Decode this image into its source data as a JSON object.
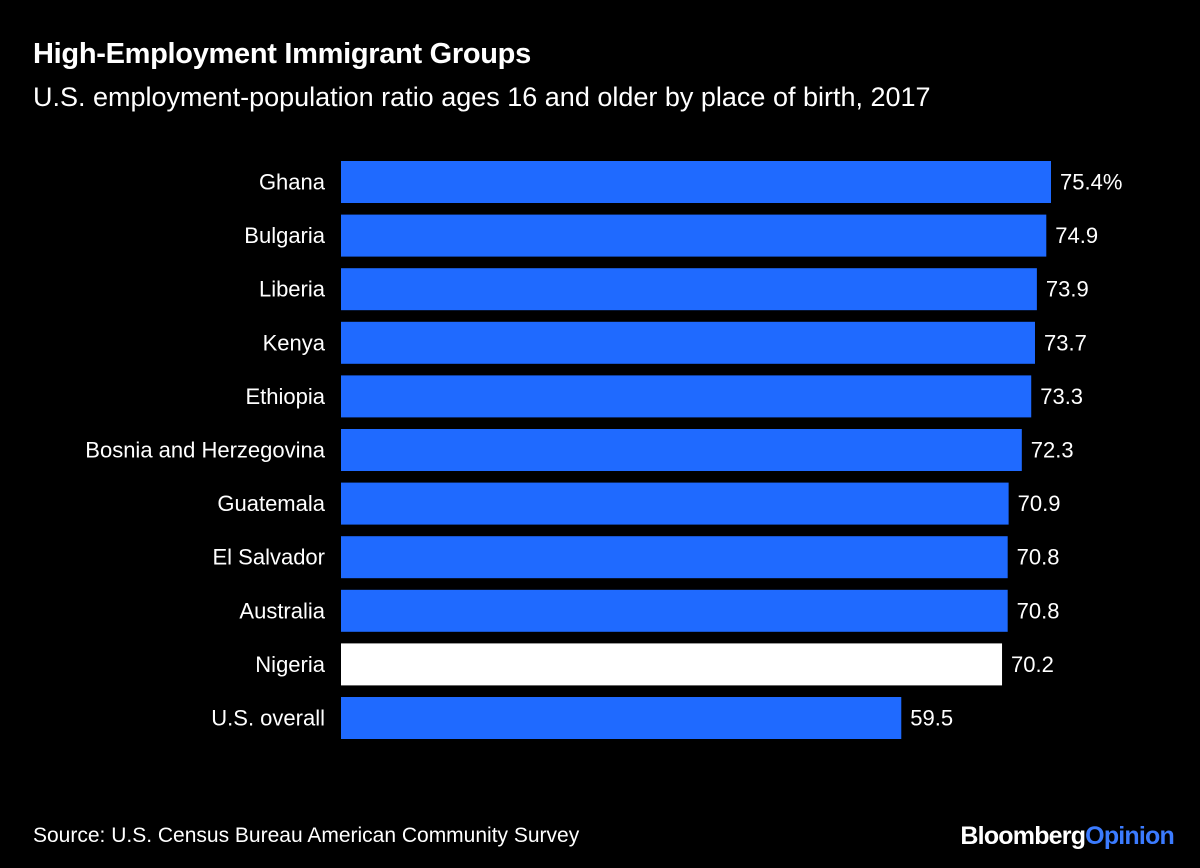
{
  "header": {
    "title": "High-Employment Immigrant Groups",
    "subtitle": "U.S. employment-population ratio ages 16 and older by place of birth, 2017"
  },
  "footer": {
    "source": "Source: U.S. Census Bureau American Community Survey",
    "logo_primary": "Bloomberg",
    "logo_secondary": "Opinion"
  },
  "colors": {
    "background": "#000000",
    "bar": "#1f6aff",
    "highlight_bar": "#ffffff",
    "logo_accent": "#3b7bff"
  },
  "chart_data": {
    "type": "bar",
    "orientation": "horizontal",
    "title": "High-Employment Immigrant Groups",
    "subtitle": "U.S. employment-population ratio ages 16 and older by place of birth, 2017",
    "categories": [
      "Ghana",
      "Bulgaria",
      "Liberia",
      "Kenya",
      "Ethiopia",
      "Bosnia and Herzegovina",
      "Guatemala",
      "El Salvador",
      "Australia",
      "Nigeria",
      "U.S. overall"
    ],
    "values": [
      75.4,
      74.9,
      73.9,
      73.7,
      73.3,
      72.3,
      70.9,
      70.8,
      70.8,
      70.2,
      59.5
    ],
    "value_labels": [
      "75.4%",
      "74.9",
      "73.9",
      "73.7",
      "73.3",
      "72.3",
      "70.9",
      "70.8",
      "70.8",
      "70.2",
      "59.5"
    ],
    "highlight": [
      "Nigeria"
    ],
    "xlim": [
      0,
      75.4
    ],
    "xlabel": "",
    "ylabel": "",
    "grid": false,
    "legend": "none"
  }
}
